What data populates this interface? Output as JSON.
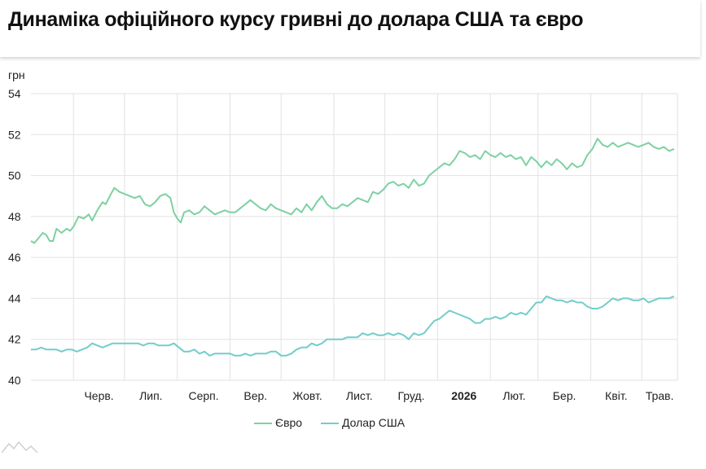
{
  "page": {
    "title": "Динаміка офіційного курсу гривні до долара США та євро"
  },
  "colors": {
    "euro": "#7dd1a2",
    "usd": "#72cdc9",
    "grid": "#e2e2e2",
    "text": "#222222"
  },
  "chart_data": {
    "type": "line",
    "ylabel": "грн",
    "ylim": [
      40,
      54
    ],
    "yticks": [
      40,
      42,
      44,
      46,
      48,
      50,
      52,
      54
    ],
    "xlim": [
      "2025-05-07",
      "2026-05-22"
    ],
    "xticks": [
      {
        "date": "2025-06-01",
        "label": "Черв.",
        "bold": false
      },
      {
        "date": "2025-07-01",
        "label": "Лип.",
        "bold": false
      },
      {
        "date": "2025-08-01",
        "label": "Серп.",
        "bold": false
      },
      {
        "date": "2025-09-01",
        "label": "Вер.",
        "bold": false
      },
      {
        "date": "2025-10-01",
        "label": "Жовт.",
        "bold": false
      },
      {
        "date": "2025-11-01",
        "label": "Лист.",
        "bold": false
      },
      {
        "date": "2025-12-01",
        "label": "Груд.",
        "bold": false
      },
      {
        "date": "2026-01-01",
        "label": "2026",
        "bold": true
      },
      {
        "date": "2026-02-01",
        "label": "Лют.",
        "bold": false
      },
      {
        "date": "2026-03-01",
        "label": "Бер.",
        "bold": false
      },
      {
        "date": "2026-04-01",
        "label": "Квіт.",
        "bold": false
      },
      {
        "date": "2026-05-01",
        "label": "Трав.",
        "bold": false
      }
    ],
    "legend": {
      "position": "bottom"
    },
    "grid": true,
    "series": [
      {
        "name": "Євро",
        "color": "#7dd1a2",
        "points": [
          [
            "2025-05-07",
            46.8
          ],
          [
            "2025-05-09",
            46.7
          ],
          [
            "2025-05-11",
            46.9
          ],
          [
            "2025-05-14",
            47.2
          ],
          [
            "2025-05-16",
            47.1
          ],
          [
            "2025-05-18",
            46.8
          ],
          [
            "2025-05-20",
            46.8
          ],
          [
            "2025-05-22",
            47.4
          ],
          [
            "2025-05-25",
            47.2
          ],
          [
            "2025-05-28",
            47.4
          ],
          [
            "2025-05-30",
            47.3
          ],
          [
            "2025-06-01",
            47.5
          ],
          [
            "2025-06-04",
            48.0
          ],
          [
            "2025-06-07",
            47.9
          ],
          [
            "2025-06-10",
            48.1
          ],
          [
            "2025-06-12",
            47.8
          ],
          [
            "2025-06-15",
            48.3
          ],
          [
            "2025-06-18",
            48.7
          ],
          [
            "2025-06-20",
            48.6
          ],
          [
            "2025-06-23",
            49.1
          ],
          [
            "2025-06-25",
            49.4
          ],
          [
            "2025-06-28",
            49.2
          ],
          [
            "2025-07-01",
            49.1
          ],
          [
            "2025-07-04",
            49.0
          ],
          [
            "2025-07-07",
            48.9
          ],
          [
            "2025-07-10",
            49.0
          ],
          [
            "2025-07-13",
            48.6
          ],
          [
            "2025-07-16",
            48.5
          ],
          [
            "2025-07-19",
            48.7
          ],
          [
            "2025-07-22",
            49.0
          ],
          [
            "2025-07-25",
            49.1
          ],
          [
            "2025-07-28",
            48.9
          ],
          [
            "2025-07-30",
            48.2
          ],
          [
            "2025-08-01",
            47.9
          ],
          [
            "2025-08-03",
            47.7
          ],
          [
            "2025-08-05",
            48.2
          ],
          [
            "2025-08-08",
            48.3
          ],
          [
            "2025-08-11",
            48.1
          ],
          [
            "2025-08-14",
            48.2
          ],
          [
            "2025-08-17",
            48.5
          ],
          [
            "2025-08-20",
            48.3
          ],
          [
            "2025-08-23",
            48.1
          ],
          [
            "2025-08-26",
            48.2
          ],
          [
            "2025-08-29",
            48.3
          ],
          [
            "2025-09-01",
            48.2
          ],
          [
            "2025-09-04",
            48.2
          ],
          [
            "2025-09-07",
            48.4
          ],
          [
            "2025-09-10",
            48.6
          ],
          [
            "2025-09-13",
            48.8
          ],
          [
            "2025-09-16",
            48.6
          ],
          [
            "2025-09-19",
            48.4
          ],
          [
            "2025-09-22",
            48.3
          ],
          [
            "2025-09-25",
            48.6
          ],
          [
            "2025-09-28",
            48.4
          ],
          [
            "2025-10-01",
            48.3
          ],
          [
            "2025-10-04",
            48.2
          ],
          [
            "2025-10-07",
            48.1
          ],
          [
            "2025-10-10",
            48.4
          ],
          [
            "2025-10-13",
            48.2
          ],
          [
            "2025-10-16",
            48.6
          ],
          [
            "2025-10-19",
            48.3
          ],
          [
            "2025-10-22",
            48.7
          ],
          [
            "2025-10-25",
            49.0
          ],
          [
            "2025-10-28",
            48.6
          ],
          [
            "2025-10-31",
            48.4
          ],
          [
            "2025-11-03",
            48.4
          ],
          [
            "2025-11-06",
            48.6
          ],
          [
            "2025-11-09",
            48.5
          ],
          [
            "2025-11-12",
            48.7
          ],
          [
            "2025-11-15",
            48.9
          ],
          [
            "2025-11-18",
            48.8
          ],
          [
            "2025-11-21",
            48.7
          ],
          [
            "2025-11-24",
            49.2
          ],
          [
            "2025-11-27",
            49.1
          ],
          [
            "2025-11-30",
            49.3
          ],
          [
            "2025-12-03",
            49.6
          ],
          [
            "2025-12-06",
            49.7
          ],
          [
            "2025-12-09",
            49.5
          ],
          [
            "2025-12-12",
            49.6
          ],
          [
            "2025-12-15",
            49.4
          ],
          [
            "2025-12-18",
            49.8
          ],
          [
            "2025-12-21",
            49.5
          ],
          [
            "2025-12-24",
            49.6
          ],
          [
            "2025-12-27",
            50.0
          ],
          [
            "2025-12-30",
            50.2
          ],
          [
            "2026-01-02",
            50.4
          ],
          [
            "2026-01-05",
            50.6
          ],
          [
            "2026-01-08",
            50.5
          ],
          [
            "2026-01-11",
            50.8
          ],
          [
            "2026-01-14",
            51.2
          ],
          [
            "2026-01-17",
            51.1
          ],
          [
            "2026-01-20",
            50.9
          ],
          [
            "2026-01-23",
            51.0
          ],
          [
            "2026-01-26",
            50.8
          ],
          [
            "2026-01-29",
            51.2
          ],
          [
            "2026-02-01",
            51.0
          ],
          [
            "2026-02-04",
            50.9
          ],
          [
            "2026-02-07",
            51.1
          ],
          [
            "2026-02-10",
            50.9
          ],
          [
            "2026-02-13",
            51.0
          ],
          [
            "2026-02-16",
            50.8
          ],
          [
            "2026-02-19",
            50.9
          ],
          [
            "2026-02-22",
            50.5
          ],
          [
            "2026-02-25",
            50.9
          ],
          [
            "2026-02-28",
            50.7
          ],
          [
            "2026-03-03",
            50.4
          ],
          [
            "2026-03-06",
            50.7
          ],
          [
            "2026-03-09",
            50.5
          ],
          [
            "2026-03-12",
            50.8
          ],
          [
            "2026-03-15",
            50.6
          ],
          [
            "2026-03-18",
            50.3
          ],
          [
            "2026-03-21",
            50.6
          ],
          [
            "2026-03-24",
            50.4
          ],
          [
            "2026-03-27",
            50.5
          ],
          [
            "2026-03-30",
            51.0
          ],
          [
            "2026-04-02",
            51.3
          ],
          [
            "2026-04-05",
            51.8
          ],
          [
            "2026-04-08",
            51.5
          ],
          [
            "2026-04-11",
            51.4
          ],
          [
            "2026-04-14",
            51.6
          ],
          [
            "2026-04-17",
            51.4
          ],
          [
            "2026-04-20",
            51.5
          ],
          [
            "2026-04-23",
            51.6
          ],
          [
            "2026-04-26",
            51.5
          ],
          [
            "2026-04-29",
            51.4
          ],
          [
            "2026-05-02",
            51.5
          ],
          [
            "2026-05-05",
            51.6
          ],
          [
            "2026-05-08",
            51.4
          ],
          [
            "2026-05-11",
            51.3
          ],
          [
            "2026-05-14",
            51.4
          ],
          [
            "2026-05-17",
            51.2
          ],
          [
            "2026-05-20",
            51.3
          ]
        ]
      },
      {
        "name": "Долар США",
        "color": "#72cdc9",
        "points": [
          [
            "2025-05-07",
            41.5
          ],
          [
            "2025-05-10",
            41.5
          ],
          [
            "2025-05-13",
            41.6
          ],
          [
            "2025-05-16",
            41.5
          ],
          [
            "2025-05-19",
            41.5
          ],
          [
            "2025-05-22",
            41.5
          ],
          [
            "2025-05-25",
            41.4
          ],
          [
            "2025-05-28",
            41.5
          ],
          [
            "2025-05-31",
            41.5
          ],
          [
            "2025-06-03",
            41.4
          ],
          [
            "2025-06-06",
            41.5
          ],
          [
            "2025-06-09",
            41.6
          ],
          [
            "2025-06-12",
            41.8
          ],
          [
            "2025-06-15",
            41.7
          ],
          [
            "2025-06-18",
            41.6
          ],
          [
            "2025-06-21",
            41.7
          ],
          [
            "2025-06-24",
            41.8
          ],
          [
            "2025-06-27",
            41.8
          ],
          [
            "2025-06-30",
            41.8
          ],
          [
            "2025-07-03",
            41.8
          ],
          [
            "2025-07-06",
            41.8
          ],
          [
            "2025-07-09",
            41.8
          ],
          [
            "2025-07-12",
            41.7
          ],
          [
            "2025-07-15",
            41.8
          ],
          [
            "2025-07-18",
            41.8
          ],
          [
            "2025-07-21",
            41.7
          ],
          [
            "2025-07-24",
            41.7
          ],
          [
            "2025-07-27",
            41.7
          ],
          [
            "2025-07-30",
            41.8
          ],
          [
            "2025-08-02",
            41.6
          ],
          [
            "2025-08-05",
            41.4
          ],
          [
            "2025-08-08",
            41.4
          ],
          [
            "2025-08-11",
            41.5
          ],
          [
            "2025-08-14",
            41.3
          ],
          [
            "2025-08-17",
            41.4
          ],
          [
            "2025-08-20",
            41.2
          ],
          [
            "2025-08-23",
            41.3
          ],
          [
            "2025-08-26",
            41.3
          ],
          [
            "2025-08-29",
            41.3
          ],
          [
            "2025-09-01",
            41.3
          ],
          [
            "2025-09-04",
            41.2
          ],
          [
            "2025-09-07",
            41.2
          ],
          [
            "2025-09-10",
            41.3
          ],
          [
            "2025-09-13",
            41.2
          ],
          [
            "2025-09-16",
            41.3
          ],
          [
            "2025-09-19",
            41.3
          ],
          [
            "2025-09-22",
            41.3
          ],
          [
            "2025-09-25",
            41.4
          ],
          [
            "2025-09-28",
            41.4
          ],
          [
            "2025-10-01",
            41.2
          ],
          [
            "2025-10-04",
            41.2
          ],
          [
            "2025-10-07",
            41.3
          ],
          [
            "2025-10-10",
            41.5
          ],
          [
            "2025-10-13",
            41.6
          ],
          [
            "2025-10-16",
            41.6
          ],
          [
            "2025-10-19",
            41.8
          ],
          [
            "2025-10-22",
            41.7
          ],
          [
            "2025-10-25",
            41.8
          ],
          [
            "2025-10-28",
            42.0
          ],
          [
            "2025-10-31",
            42.0
          ],
          [
            "2025-11-03",
            42.0
          ],
          [
            "2025-11-06",
            42.0
          ],
          [
            "2025-11-09",
            42.1
          ],
          [
            "2025-11-12",
            42.1
          ],
          [
            "2025-11-15",
            42.1
          ],
          [
            "2025-11-18",
            42.3
          ],
          [
            "2025-11-21",
            42.2
          ],
          [
            "2025-11-24",
            42.3
          ],
          [
            "2025-11-27",
            42.2
          ],
          [
            "2025-11-30",
            42.2
          ],
          [
            "2025-12-03",
            42.3
          ],
          [
            "2025-12-06",
            42.2
          ],
          [
            "2025-12-09",
            42.3
          ],
          [
            "2025-12-12",
            42.2
          ],
          [
            "2025-12-15",
            42.0
          ],
          [
            "2025-12-18",
            42.3
          ],
          [
            "2025-12-21",
            42.2
          ],
          [
            "2025-12-24",
            42.3
          ],
          [
            "2025-12-27",
            42.6
          ],
          [
            "2025-12-30",
            42.9
          ],
          [
            "2026-01-02",
            43.0
          ],
          [
            "2026-01-05",
            43.2
          ],
          [
            "2026-01-08",
            43.4
          ],
          [
            "2026-01-11",
            43.3
          ],
          [
            "2026-01-14",
            43.2
          ],
          [
            "2026-01-17",
            43.1
          ],
          [
            "2026-01-20",
            43.0
          ],
          [
            "2026-01-23",
            42.8
          ],
          [
            "2026-01-26",
            42.8
          ],
          [
            "2026-01-29",
            43.0
          ],
          [
            "2026-02-01",
            43.0
          ],
          [
            "2026-02-04",
            43.1
          ],
          [
            "2026-02-07",
            43.0
          ],
          [
            "2026-02-10",
            43.1
          ],
          [
            "2026-02-13",
            43.3
          ],
          [
            "2026-02-16",
            43.2
          ],
          [
            "2026-02-19",
            43.3
          ],
          [
            "2026-02-22",
            43.2
          ],
          [
            "2026-02-25",
            43.5
          ],
          [
            "2026-02-28",
            43.8
          ],
          [
            "2026-03-03",
            43.8
          ],
          [
            "2026-03-06",
            44.1
          ],
          [
            "2026-03-09",
            44.0
          ],
          [
            "2026-03-12",
            43.9
          ],
          [
            "2026-03-15",
            43.9
          ],
          [
            "2026-03-18",
            43.8
          ],
          [
            "2026-03-21",
            43.9
          ],
          [
            "2026-03-24",
            43.8
          ],
          [
            "2026-03-27",
            43.8
          ],
          [
            "2026-03-30",
            43.6
          ],
          [
            "2026-04-02",
            43.5
          ],
          [
            "2026-04-05",
            43.5
          ],
          [
            "2026-04-08",
            43.6
          ],
          [
            "2026-04-11",
            43.8
          ],
          [
            "2026-04-14",
            44.0
          ],
          [
            "2026-04-17",
            43.9
          ],
          [
            "2026-04-20",
            44.0
          ],
          [
            "2026-04-23",
            44.0
          ],
          [
            "2026-04-26",
            43.9
          ],
          [
            "2026-04-29",
            43.9
          ],
          [
            "2026-05-02",
            44.0
          ],
          [
            "2026-05-05",
            43.8
          ],
          [
            "2026-05-08",
            43.9
          ],
          [
            "2026-05-11",
            44.0
          ],
          [
            "2026-05-14",
            44.0
          ],
          [
            "2026-05-17",
            44.0
          ],
          [
            "2026-05-20",
            44.1
          ]
        ]
      }
    ]
  }
}
